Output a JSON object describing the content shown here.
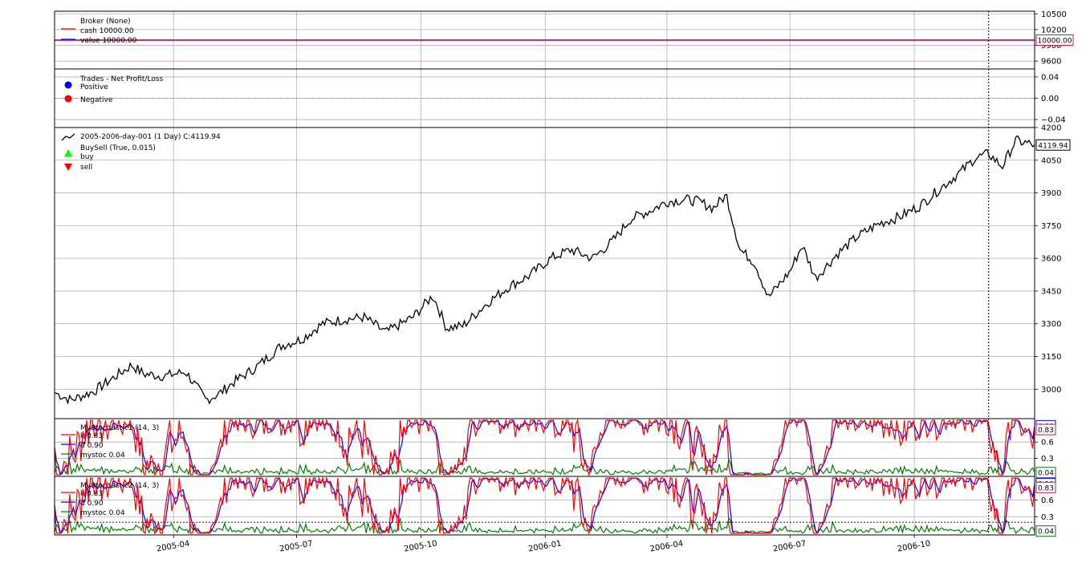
{
  "chart_data": {
    "type": "line",
    "x_ticks": [
      "2005-04",
      "2005-07",
      "2005-10",
      "2006-01",
      "2006-04",
      "2006-07",
      "2006-10"
    ],
    "panels": [
      {
        "id": "broker",
        "legend": [
          "Broker (None)",
          "cash 10000.00",
          "value 10000.00"
        ],
        "ylim": [
          9450,
          10550
        ],
        "ticks": [
          "10500",
          "10200",
          "9900",
          "9600"
        ],
        "tick_values": [
          10500,
          10200,
          9900,
          9600
        ],
        "series": [
          {
            "name": "cash",
            "value": 10000.0,
            "color": "#ff0000"
          },
          {
            "name": "value",
            "value": 10000.0,
            "color": "#0000ff"
          }
        ],
        "last_label": "10000.00",
        "last_label_color": "#c2185b"
      },
      {
        "id": "trades",
        "legend": [
          "Trades - Net Profit/Loss",
          "Positive",
          "Negative"
        ],
        "ylim": [
          -0.055,
          0.055
        ],
        "ticks": [
          "0.04",
          "0.00",
          "−0.04"
        ],
        "tick_values": [
          0.04,
          0.0,
          -0.04
        ],
        "marker_colors": [
          "#0000ff",
          "#ff0000"
        ]
      },
      {
        "id": "price",
        "legend": [
          "2005-2006-day-001 (1 Day) C:4119.94",
          "BuySell (True, 0.015)",
          "buy",
          "sell"
        ],
        "ylim": [
          2865,
          4200
        ],
        "ticks": [
          "4200",
          "4050",
          "3900",
          "3750",
          "3600",
          "3450",
          "3300",
          "3150",
          "3000"
        ],
        "tick_values": [
          4200,
          4050,
          3900,
          3750,
          3600,
          3450,
          3300,
          3150,
          3000
        ],
        "last_label": "4119.94",
        "close": {
          "dates": [
            "2005-01-03",
            "2005-01-15",
            "2005-02-01",
            "2005-02-15",
            "2005-03-01",
            "2005-03-10",
            "2005-03-25",
            "2005-04-10",
            "2005-04-25",
            "2005-05-05",
            "2005-05-15",
            "2005-06-01",
            "2005-06-20",
            "2005-07-05",
            "2005-07-20",
            "2005-08-05",
            "2005-08-20",
            "2005-09-05",
            "2005-09-25",
            "2005-10-10",
            "2005-10-20",
            "2005-11-01",
            "2005-11-20",
            "2005-12-05",
            "2005-12-20",
            "2006-01-05",
            "2006-01-20",
            "2006-02-05",
            "2006-02-20",
            "2006-03-05",
            "2006-03-20",
            "2006-04-01",
            "2006-04-15",
            "2006-04-25",
            "2006-05-05",
            "2006-05-15",
            "2006-05-25",
            "2006-06-05",
            "2006-06-15",
            "2006-07-01",
            "2006-07-10",
            "2006-07-20",
            "2006-08-05",
            "2006-08-20",
            "2006-09-05",
            "2006-09-20",
            "2006-10-05",
            "2006-10-20",
            "2006-11-05",
            "2006-11-15",
            "2006-11-25",
            "2006-12-05",
            "2006-12-15",
            "2006-12-29"
          ],
          "values": [
            2985,
            2950,
            2990,
            3050,
            3110,
            3070,
            3060,
            3080,
            2950,
            2980,
            3030,
            3100,
            3200,
            3230,
            3300,
            3320,
            3330,
            3260,
            3330,
            3430,
            3280,
            3290,
            3400,
            3470,
            3520,
            3600,
            3640,
            3600,
            3680,
            3780,
            3820,
            3860,
            3870,
            3860,
            3830,
            3890,
            3640,
            3580,
            3420,
            3540,
            3660,
            3510,
            3620,
            3700,
            3760,
            3790,
            3840,
            3920,
            4000,
            4060,
            4080,
            4020,
            4140,
            4119.94
          ],
          "color": "#000000"
        },
        "cursor_date": "2006-11-25"
      },
      {
        "id": "stoch1",
        "legend": [
          "MyStochastic1 (14, 3)",
          "k 0.83",
          "d 0.90",
          "mystoc 0.04"
        ],
        "ylim": [
          -0.03,
          1.03
        ],
        "ticks": [
          "0.6",
          "0.3"
        ],
        "tick_values": [
          0.6,
          0.3
        ],
        "series_colors": {
          "k": "#ff0000",
          "d": "#0000ff",
          "mystoc": "#008000"
        },
        "last_k": "0.83",
        "last_d": "0.90",
        "last_mystoc": "0.04"
      },
      {
        "id": "stoch2",
        "legend": [
          "MyStochastic2 (14, 3)",
          "k 0.83",
          "d 0.90",
          "mystoc 0.04"
        ],
        "ylim": [
          -0.03,
          1.03
        ],
        "ticks": [
          "0.6",
          "0.3"
        ],
        "tick_values": [
          0.6,
          0.3
        ],
        "series_colors": {
          "k": "#ff0000",
          "d": "#0000ff",
          "mystoc": "#008000"
        },
        "last_k": "0.83",
        "last_d": "0.90",
        "last_mystoc": "0.04",
        "hline": 0.2
      }
    ],
    "grid": true
  }
}
